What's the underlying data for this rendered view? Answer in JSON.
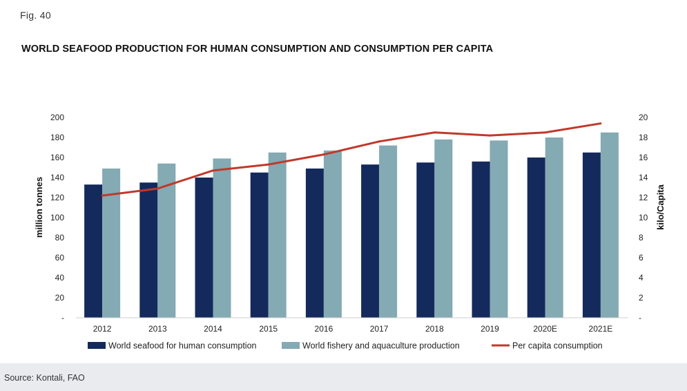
{
  "figure": {
    "label": "Fig. 40",
    "title": "WORLD SEAFOOD PRODUCTION FOR HUMAN CONSUMPTION AND CONSUMPTION PER CAPITA",
    "source": "Source: Kontali, FAO"
  },
  "colors": {
    "human_consumption": "#142a5c",
    "production": "#84aab3",
    "per_capita": "#c0392b"
  },
  "chart_data": {
    "type": "bar",
    "title": "WORLD SEAFOOD PRODUCTION FOR HUMAN CONSUMPTION AND CONSUMPTION PER CAPITA",
    "categories": [
      "2012",
      "2013",
      "2014",
      "2015",
      "2016",
      "2017",
      "2018",
      "2019",
      "2020E",
      "2021E"
    ],
    "ylabel": "million tonnes",
    "ylim": [
      0,
      200
    ],
    "yticks": [
      "-",
      "20",
      "40",
      "60",
      "80",
      "100",
      "120",
      "140",
      "160",
      "180",
      "200"
    ],
    "y2label": "kilo/Capita",
    "y2lim": [
      0,
      20
    ],
    "y2ticks": [
      "-",
      "2",
      "4",
      "6",
      "8",
      "10",
      "12",
      "14",
      "16",
      "18",
      "20"
    ],
    "series": [
      {
        "name": "World seafood for human consumption",
        "kind": "bar",
        "axis": "left",
        "values": [
          133,
          135,
          140,
          145,
          149,
          153,
          155,
          156,
          160,
          165
        ]
      },
      {
        "name": "World fishery and aquaculture production",
        "kind": "bar",
        "axis": "left",
        "values": [
          149,
          154,
          159,
          165,
          167,
          172,
          178,
          177,
          180,
          185
        ]
      },
      {
        "name": "Per capita consumption",
        "kind": "line",
        "axis": "right",
        "values": [
          12.2,
          12.9,
          14.7,
          15.3,
          16.3,
          17.6,
          18.5,
          18.2,
          18.5,
          19.4
        ]
      }
    ],
    "legend": "bottom",
    "grid": false
  }
}
